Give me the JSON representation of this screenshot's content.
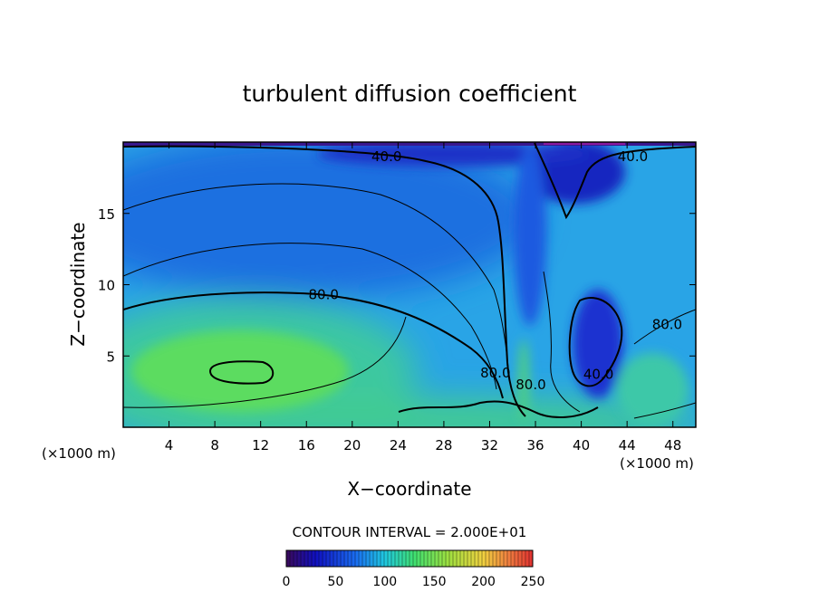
{
  "chart_data": {
    "type": "heatmap",
    "title": "turbulent diffusion coefficient",
    "xlabel": "X−coordinate",
    "ylabel": "Z−coordinate",
    "x_unit_left": "(×1000 m)",
    "x_unit_right": "(×1000 m)",
    "xlim": [
      0,
      50
    ],
    "ylim": [
      0,
      20
    ],
    "xticks": [
      4,
      8,
      12,
      16,
      20,
      24,
      28,
      32,
      36,
      40,
      44,
      48
    ],
    "yticks": [
      5,
      10,
      15
    ],
    "contour_interval_text": "CONTOUR INTERVAL = 2.000E+01",
    "contour_labels": [
      {
        "text": "40.0",
        "x": 23,
        "z": 19.0
      },
      {
        "text": "40.0",
        "x": 44.5,
        "z": 19.0
      },
      {
        "text": "80.0",
        "x": 17.5,
        "z": 9.3
      },
      {
        "text": "80.0",
        "x": 47.5,
        "z": 7.2
      },
      {
        "text": "80.0",
        "x": 32.5,
        "z": 3.8
      },
      {
        "text": "80.0",
        "x": 35.6,
        "z": 3.0
      },
      {
        "text": "40.0",
        "x": 41.5,
        "z": 3.7
      }
    ],
    "colorbar": {
      "min": 0,
      "max": 250,
      "ticks": [
        "0",
        "50",
        "100",
        "150",
        "200",
        "250"
      ]
    }
  }
}
